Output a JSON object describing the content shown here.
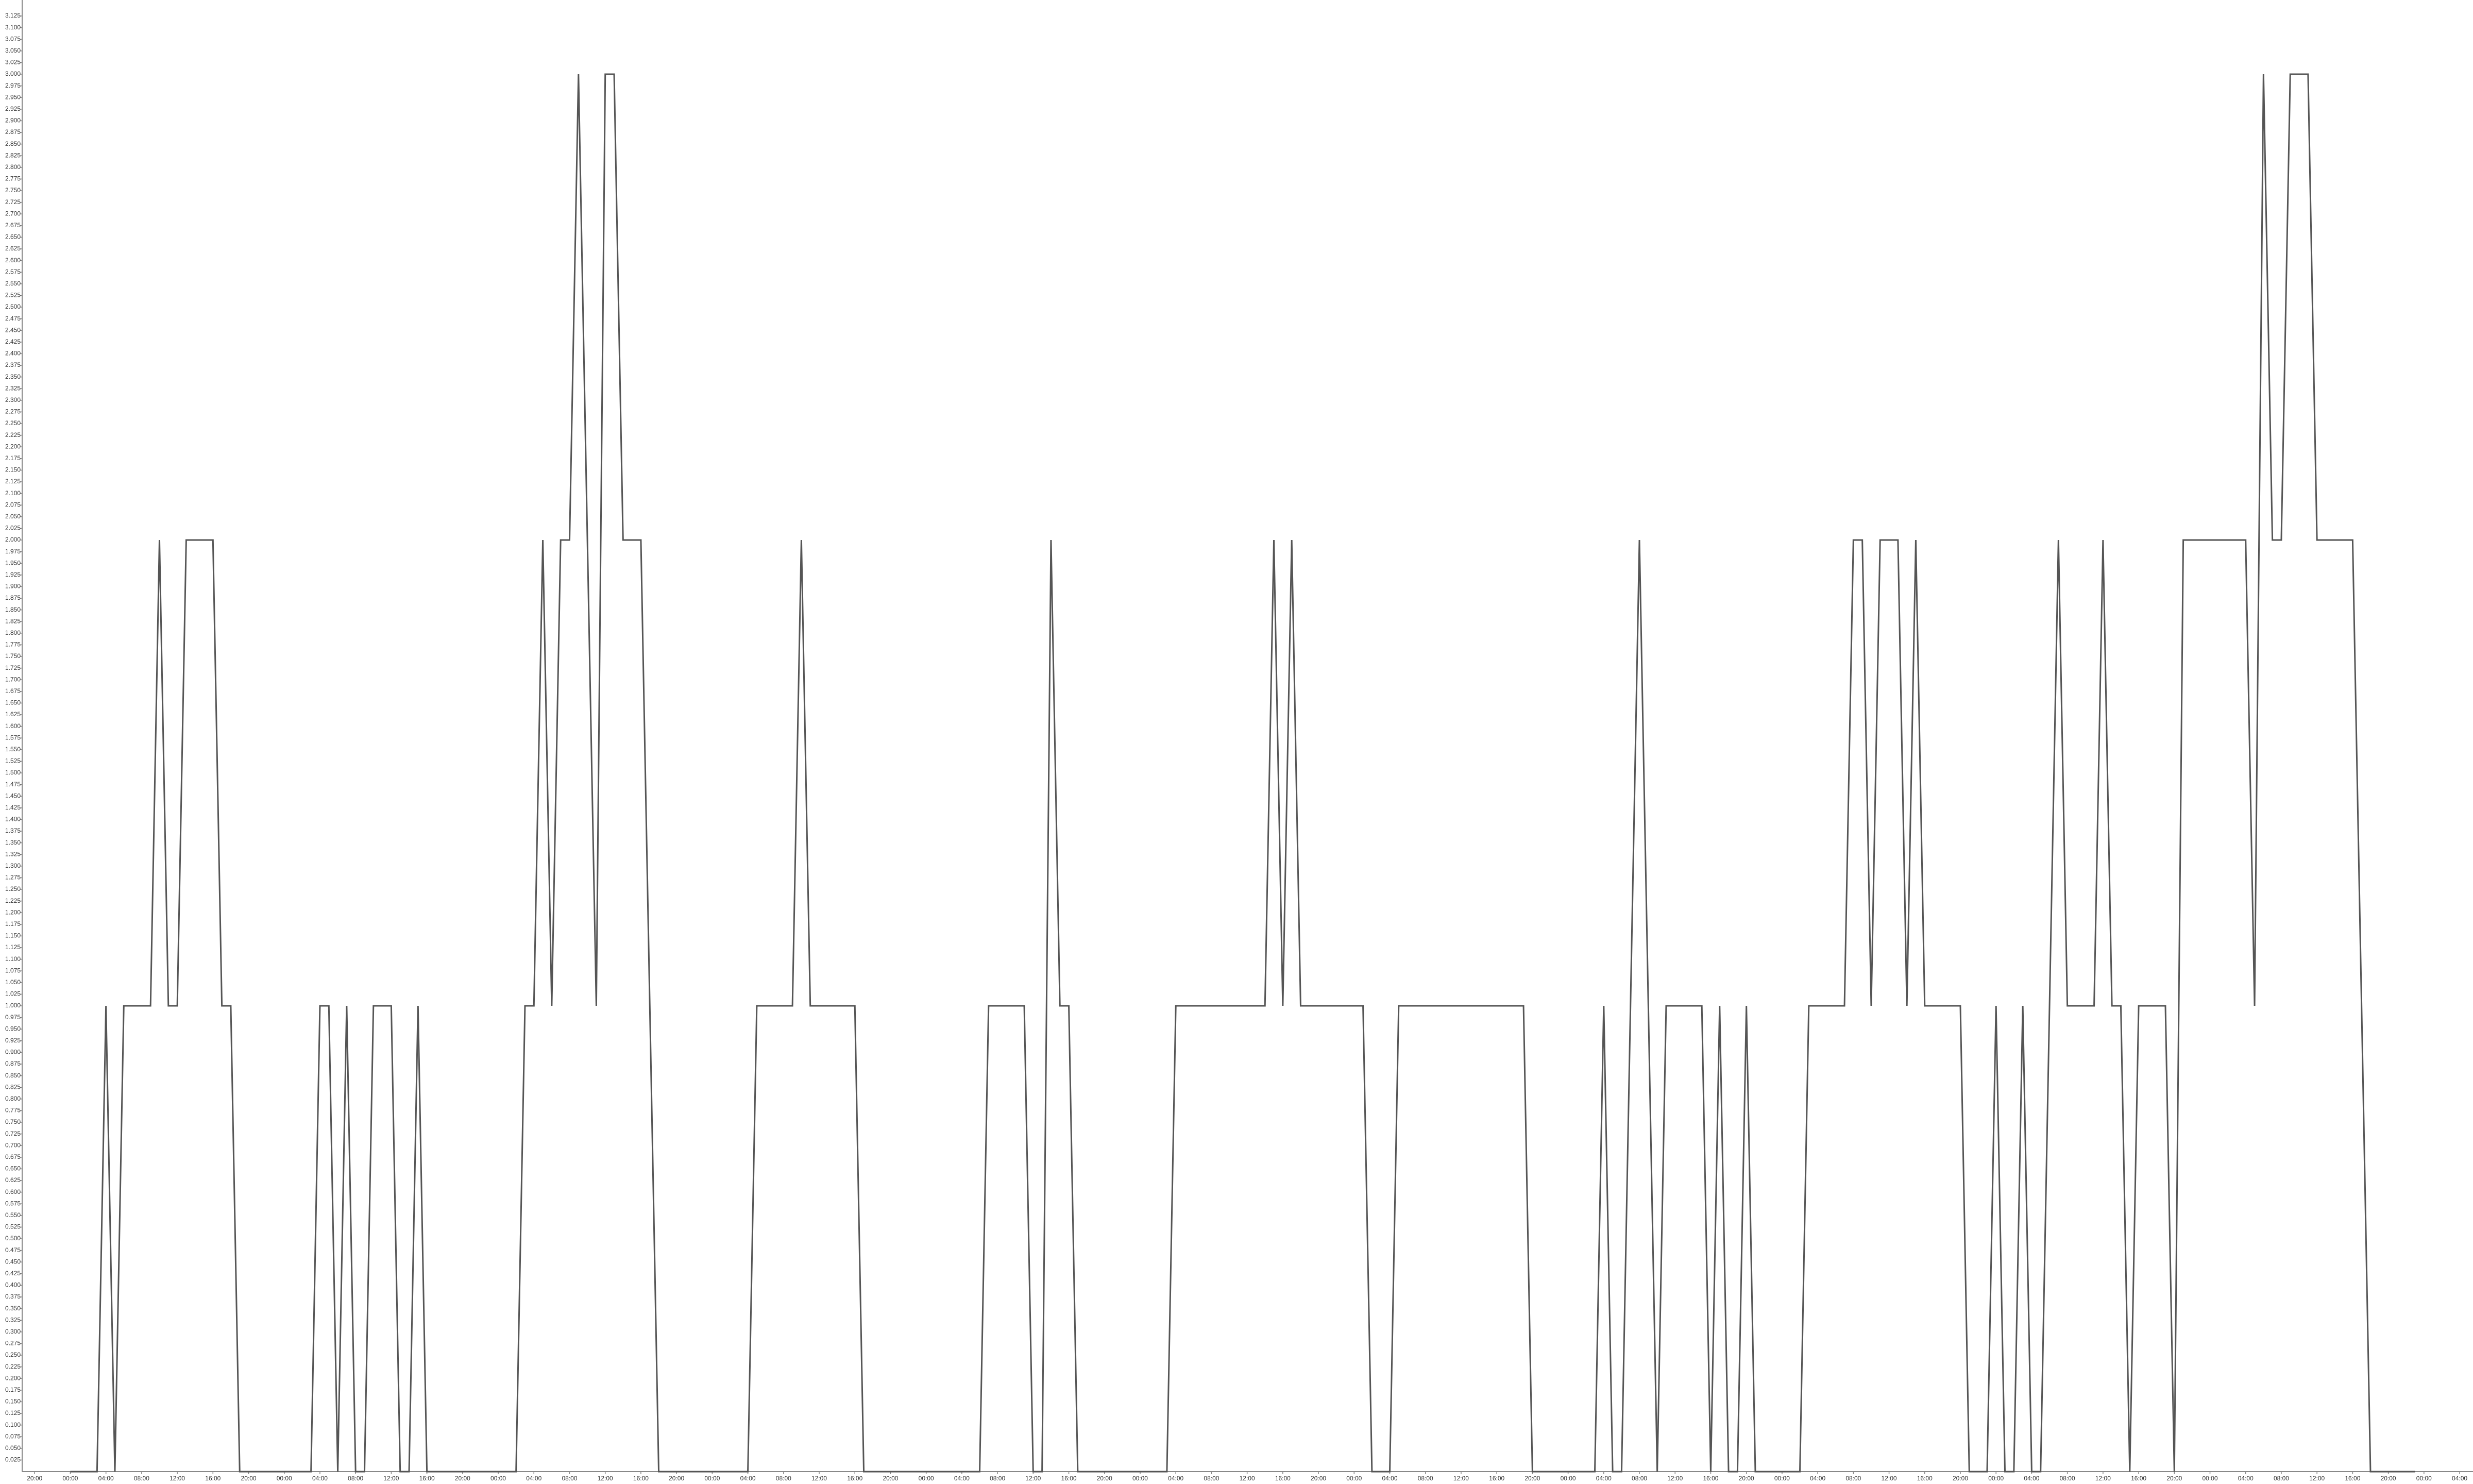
{
  "chart_data": {
    "type": "line",
    "x": [
      4,
      7,
      8,
      9,
      10,
      13,
      14,
      15,
      16,
      17,
      20,
      21,
      22,
      23,
      31,
      32,
      33,
      34,
      35,
      36,
      37,
      38,
      40,
      41,
      42,
      43,
      44,
      54,
      55,
      56,
      57,
      58,
      59,
      60,
      61,
      62,
      63,
      64,
      65,
      66,
      68,
      69,
      70,
      80,
      81,
      85,
      86,
      87,
      92,
      93,
      106,
      107,
      111,
      112,
      113,
      114,
      115,
      116,
      117,
      127,
      128,
      138,
      139,
      140,
      141,
      142,
      149,
      150,
      152,
      153,
      167,
      168,
      175,
      176,
      177,
      178,
      179,
      180,
      181,
      182,
      183,
      187,
      188,
      189,
      190,
      191,
      192,
      193,
      198,
      199,
      203,
      204,
      205,
      206,
      207,
      209,
      210,
      211,
      212,
      216,
      217,
      219,
      220,
      221,
      222,
      223,
      224,
      225,
      226,
      227,
      228,
      231,
      232,
      233,
      234,
      235,
      236,
      239,
      240,
      241,
      248,
      249,
      250,
      251,
      252,
      253,
      255,
      256,
      260,
      261,
      262,
      267
    ],
    "values": [
      0,
      0,
      1,
      0,
      1,
      1,
      2,
      1,
      1,
      2,
      2,
      1,
      1,
      0,
      0,
      1,
      1,
      0,
      1,
      0,
      0,
      1,
      1,
      0,
      0,
      1,
      0,
      0,
      1,
      1,
      2,
      1,
      2,
      2,
      3,
      2,
      1,
      3,
      3,
      2,
      2,
      1,
      0,
      0,
      1,
      1,
      2,
      1,
      1,
      0,
      0,
      1,
      1,
      0,
      0,
      2,
      1,
      1,
      0,
      0,
      1,
      1,
      2,
      1,
      2,
      1,
      1,
      0,
      0,
      1,
      1,
      0,
      0,
      1,
      0,
      0,
      1,
      2,
      1,
      0,
      1,
      1,
      0,
      1,
      0,
      0,
      1,
      0,
      0,
      1,
      1,
      2,
      2,
      1,
      2,
      2,
      1,
      2,
      1,
      1,
      0,
      0,
      1,
      0,
      0,
      1,
      0,
      0,
      1,
      2,
      1,
      1,
      2,
      1,
      1,
      0,
      1,
      1,
      0,
      2,
      2,
      1,
      3,
      2,
      2,
      3,
      3,
      2,
      2,
      1,
      0,
      0
    ],
    "color": "#555555",
    "xlim": [
      -1.4,
      273.5
    ],
    "xticks": [
      {
        "value": 0,
        "label": "20:00"
      },
      {
        "value": 4,
        "label": "00:00"
      },
      {
        "value": 8,
        "label": "04:00"
      },
      {
        "value": 12,
        "label": "08:00"
      },
      {
        "value": 16,
        "label": "12:00"
      },
      {
        "value": 20,
        "label": "16:00"
      },
      {
        "value": 24,
        "label": "20:00"
      },
      {
        "value": 28,
        "label": "00:00"
      },
      {
        "value": 32,
        "label": "04:00"
      },
      {
        "value": 36,
        "label": "08:00"
      },
      {
        "value": 40,
        "label": "12:00"
      },
      {
        "value": 44,
        "label": "16:00"
      },
      {
        "value": 48,
        "label": "20:00"
      },
      {
        "value": 52,
        "label": "00:00"
      },
      {
        "value": 56,
        "label": "04:00"
      },
      {
        "value": 60,
        "label": "08:00"
      },
      {
        "value": 64,
        "label": "12:00"
      },
      {
        "value": 68,
        "label": "16:00"
      },
      {
        "value": 72,
        "label": "20:00"
      },
      {
        "value": 76,
        "label": "00:00"
      },
      {
        "value": 80,
        "label": "04:00"
      },
      {
        "value": 84,
        "label": "08:00"
      },
      {
        "value": 88,
        "label": "12:00"
      },
      {
        "value": 92,
        "label": "16:00"
      },
      {
        "value": 96,
        "label": "20:00"
      },
      {
        "value": 100,
        "label": "00:00"
      },
      {
        "value": 104,
        "label": "04:00"
      },
      {
        "value": 108,
        "label": "08:00"
      },
      {
        "value": 112,
        "label": "12:00"
      },
      {
        "value": 116,
        "label": "16:00"
      },
      {
        "value": 120,
        "label": "20:00"
      },
      {
        "value": 124,
        "label": "00:00"
      },
      {
        "value": 128,
        "label": "04:00"
      },
      {
        "value": 132,
        "label": "08:00"
      },
      {
        "value": 136,
        "label": "12:00"
      },
      {
        "value": 140,
        "label": "16:00"
      },
      {
        "value": 144,
        "label": "20:00"
      },
      {
        "value": 148,
        "label": "00:00"
      },
      {
        "value": 152,
        "label": "04:00"
      },
      {
        "value": 156,
        "label": "08:00"
      },
      {
        "value": 160,
        "label": "12:00"
      },
      {
        "value": 164,
        "label": "16:00"
      },
      {
        "value": 168,
        "label": "20:00"
      },
      {
        "value": 172,
        "label": "00:00"
      },
      {
        "value": 176,
        "label": "04:00"
      },
      {
        "value": 180,
        "label": "08:00"
      },
      {
        "value": 184,
        "label": "12:00"
      },
      {
        "value": 188,
        "label": "16:00"
      },
      {
        "value": 192,
        "label": "20:00"
      },
      {
        "value": 196,
        "label": "00:00"
      },
      {
        "value": 200,
        "label": "04:00"
      },
      {
        "value": 204,
        "label": "08:00"
      },
      {
        "value": 208,
        "label": "12:00"
      },
      {
        "value": 212,
        "label": "16:00"
      },
      {
        "value": 216,
        "label": "20:00"
      },
      {
        "value": 220,
        "label": "00:00"
      },
      {
        "value": 224,
        "label": "04:00"
      },
      {
        "value": 228,
        "label": "08:00"
      },
      {
        "value": 232,
        "label": "12:00"
      },
      {
        "value": 236,
        "label": "16:00"
      },
      {
        "value": 240,
        "label": "20:00"
      },
      {
        "value": 244,
        "label": "00:00"
      },
      {
        "value": 248,
        "label": "04:00"
      },
      {
        "value": 252,
        "label": "08:00"
      },
      {
        "value": 256,
        "label": "12:00"
      },
      {
        "value": 260,
        "label": "16:00"
      },
      {
        "value": 264,
        "label": "20:00"
      },
      {
        "value": 268,
        "label": "00:00"
      },
      {
        "value": 272,
        "label": "04:00"
      }
    ],
    "ylim": [
      0,
      3.125
    ],
    "yticks": [
      0.025,
      {
        "value": 0.05,
        "label": "0.050"
      },
      0.075,
      {
        "value": 0.1,
        "label": "0.100"
      },
      0.125,
      {
        "value": 0.15,
        "label": "0.150"
      },
      0.175,
      {
        "value": 0.2,
        "label": "0.200"
      },
      0.225,
      {
        "value": 0.25,
        "label": "0.250"
      },
      0.275,
      {
        "value": 0.3,
        "label": "0.300"
      },
      0.325,
      {
        "value": 0.35,
        "label": "0.350"
      },
      0.375,
      {
        "value": 0.4,
        "label": "0.400"
      },
      0.425,
      {
        "value": 0.45,
        "label": "0.450"
      },
      0.475,
      {
        "value": 0.5,
        "label": "0.500"
      },
      0.525,
      {
        "value": 0.55,
        "label": "0.550"
      },
      0.575,
      {
        "value": 0.6,
        "label": "0.600"
      },
      0.625,
      {
        "value": 0.65,
        "label": "0.650"
      },
      0.675,
      {
        "value": 0.7,
        "label": "0.700"
      },
      0.725,
      {
        "value": 0.75,
        "label": "0.750"
      },
      0.775,
      {
        "value": 0.8,
        "label": "0.800"
      },
      0.825,
      {
        "value": 0.85,
        "label": "0.850"
      },
      0.875,
      {
        "value": 0.9,
        "label": "0.900"
      },
      0.925,
      {
        "value": 0.95,
        "label": "0.950"
      },
      0.975,
      {
        "value": 1,
        "label": "1.000"
      },
      1.025,
      {
        "value": 1.05,
        "label": "1.050"
      },
      1.075,
      {
        "value": 1.1,
        "label": "1.100"
      },
      1.125,
      {
        "value": 1.15,
        "label": "1.150"
      },
      1.175,
      {
        "value": 1.2,
        "label": "1.200"
      },
      1.225,
      {
        "value": 1.25,
        "label": "1.250"
      },
      1.275,
      {
        "value": 1.3,
        "label": "1.300"
      },
      1.325,
      {
        "value": 1.35,
        "label": "1.350"
      },
      1.375,
      {
        "value": 1.4,
        "label": "1.400"
      },
      1.425,
      {
        "value": 1.45,
        "label": "1.450"
      },
      1.475,
      {
        "value": 1.5,
        "label": "1.500"
      },
      1.525,
      {
        "value": 1.55,
        "label": "1.550"
      },
      1.575,
      {
        "value": 1.6,
        "label": "1.600"
      },
      1.625,
      {
        "value": 1.65,
        "label": "1.650"
      },
      1.675,
      {
        "value": 1.7,
        "label": "1.700"
      },
      1.725,
      {
        "value": 1.75,
        "label": "1.750"
      },
      1.775,
      {
        "value": 1.8,
        "label": "1.800"
      },
      1.825,
      {
        "value": 1.85,
        "label": "1.850"
      },
      1.875,
      {
        "value": 1.9,
        "label": "1.900"
      },
      1.925,
      {
        "value": 1.95,
        "label": "1.950"
      },
      1.975,
      {
        "value": 2,
        "label": "2.000"
      },
      2.025,
      {
        "value": 2.05,
        "label": "2.050"
      },
      2.075,
      {
        "value": 2.1,
        "label": "2.100"
      },
      2.125,
      {
        "value": 2.15,
        "label": "2.150"
      },
      2.175,
      {
        "value": 2.2,
        "label": "2.200"
      },
      2.225,
      {
        "value": 2.25,
        "label": "2.250"
      },
      2.275,
      {
        "value": 2.3,
        "label": "2.300"
      },
      2.325,
      {
        "value": 2.35,
        "label": "2.350"
      },
      2.375,
      {
        "value": 2.4,
        "label": "2.400"
      },
      2.425,
      {
        "value": 2.45,
        "label": "2.450"
      },
      2.475,
      {
        "value": 2.5,
        "label": "2.500"
      },
      2.525,
      {
        "value": 2.55,
        "label": "2.550"
      },
      2.575,
      {
        "value": 2.6,
        "label": "2.600"
      },
      2.625,
      {
        "value": 2.65,
        "label": "2.650"
      },
      2.675,
      {
        "value": 2.7,
        "label": "2.700"
      },
      2.725,
      {
        "value": 2.75,
        "label": "2.750"
      },
      2.775,
      {
        "value": 2.8,
        "label": "2.800"
      },
      2.825,
      {
        "value": 2.85,
        "label": "2.850"
      },
      2.875,
      {
        "value": 2.9,
        "label": "2.900"
      },
      2.925,
      {
        "value": 2.95,
        "label": "2.950"
      },
      2.975,
      {
        "value": 3,
        "label": "3.000"
      },
      3.025,
      {
        "value": 3.05,
        "label": "3.050"
      },
      3.075,
      {
        "value": 3.1,
        "label": "3.100"
      },
      3.125
    ]
  }
}
